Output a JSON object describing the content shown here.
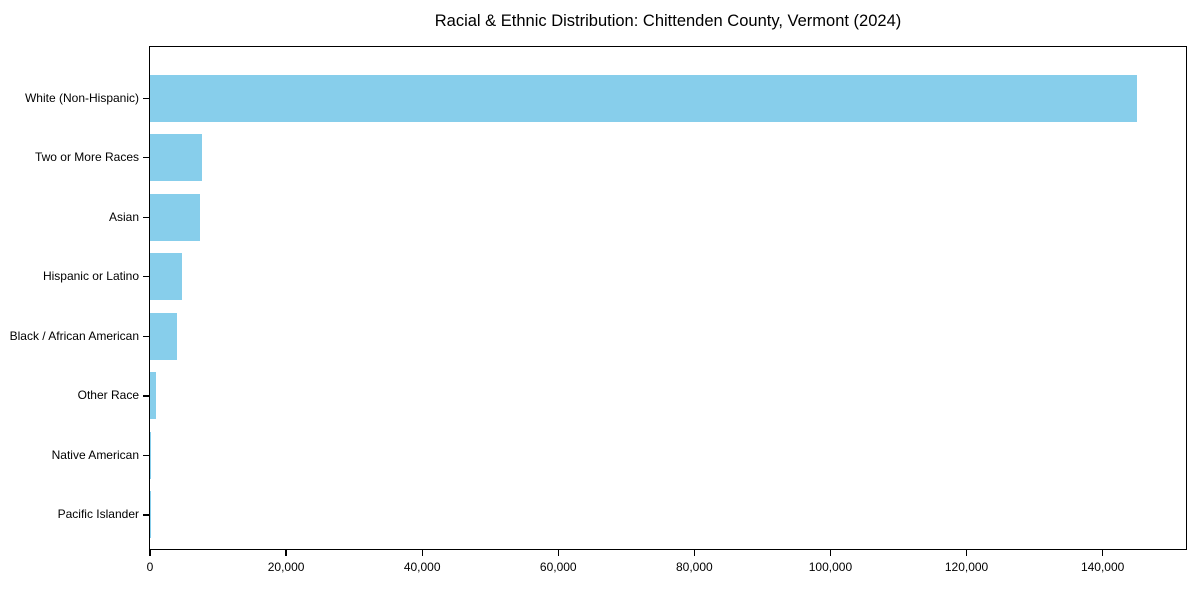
{
  "chart_data": {
    "type": "bar",
    "orientation": "horizontal",
    "title": "Racial & Ethnic Distribution: Chittenden County, Vermont (2024)",
    "categories": [
      "White (Non-Hispanic)",
      "Two or More Races",
      "Asian",
      "Hispanic or Latino",
      "Black / African American",
      "Other Race",
      "Native American",
      "Pacific Islander"
    ],
    "values": [
      145000,
      7700,
      7300,
      4700,
      3900,
      900,
      150,
      40
    ],
    "xlabel": "",
    "ylabel": "",
    "xlim": [
      0,
      152250
    ],
    "x_ticks": [
      0,
      20000,
      40000,
      60000,
      80000,
      100000,
      120000,
      140000
    ],
    "x_tick_labels": [
      "0",
      "20,000",
      "40,000",
      "60,000",
      "80,000",
      "100,000",
      "120,000",
      "140,000"
    ],
    "bar_color": "#87CEEB",
    "background_color": "#ffffff",
    "axis_color": "#000000",
    "grid": false,
    "legend": null
  }
}
